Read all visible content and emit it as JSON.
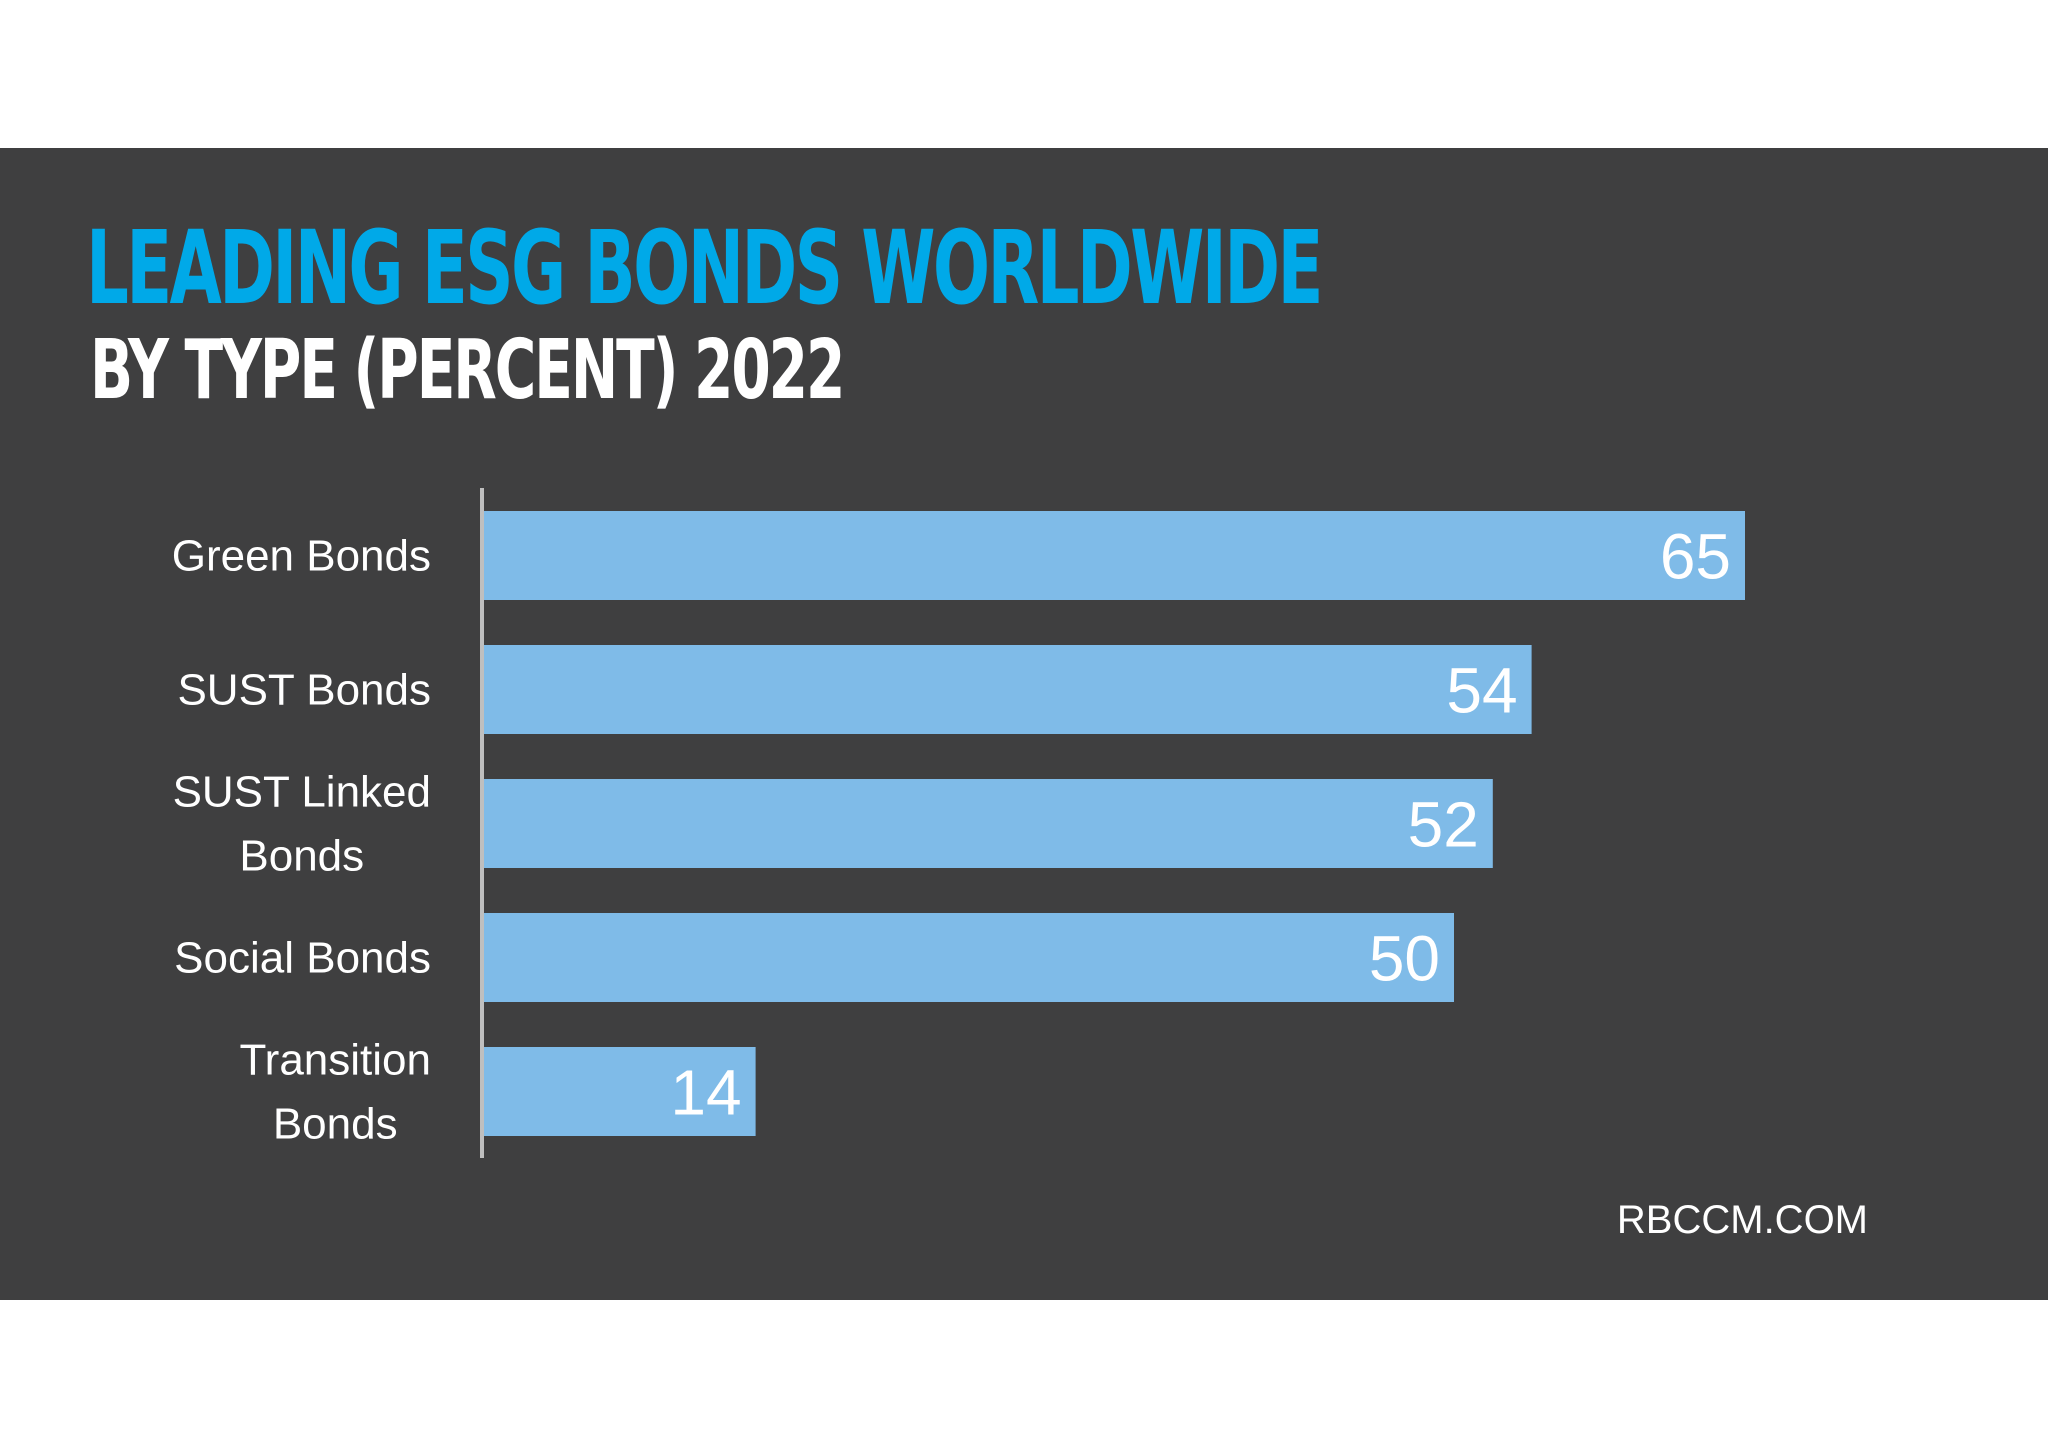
{
  "chart_data": {
    "type": "bar",
    "orientation": "horizontal",
    "title": "LEADING ESG BONDS WORLDWIDE",
    "subtitle": "BY TYPE (PERCENT) 2022",
    "categories": [
      "Green Bonds",
      "SUST Bonds",
      "SUST Linked Bonds",
      "Social Bonds",
      "Transition Bonds"
    ],
    "category_label_lines": [
      [
        "Green Bonds"
      ],
      [
        "SUST Bonds"
      ],
      [
        "SUST Linked",
        "Bonds"
      ],
      [
        "Social Bonds"
      ],
      [
        "Transition",
        "Bonds"
      ]
    ],
    "values": [
      65,
      54,
      52,
      50,
      14
    ],
    "data_labels": [
      "65",
      "54",
      "52",
      "50",
      "14"
    ],
    "xlabel": "",
    "ylabel": "",
    "xlim": [
      0,
      65
    ],
    "grid": false,
    "legend": "none",
    "bar_color": "#7fbbe8",
    "background_color": "#3f3f40",
    "title_color": "#00a9e8"
  },
  "source": "RBCCM.COM"
}
